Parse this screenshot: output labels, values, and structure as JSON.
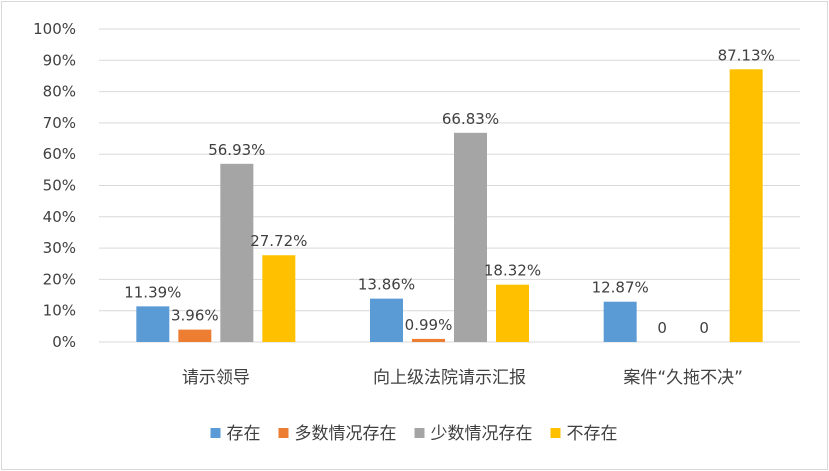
{
  "chart_data": {
    "type": "bar",
    "title": "",
    "xlabel": "",
    "ylabel": "",
    "ylim": [
      0,
      100
    ],
    "y_ticks": [
      "0%",
      "10%",
      "20%",
      "30%",
      "40%",
      "50%",
      "60%",
      "70%",
      "80%",
      "90%",
      "100%"
    ],
    "grid": true,
    "legend_position": "bottom",
    "categories": [
      "请示领导",
      "向上级法院请示汇报",
      "案件“久拖不决”"
    ],
    "series": [
      {
        "name": "存在",
        "color": "#5B9BD5",
        "values": [
          11.39,
          13.86,
          12.87
        ],
        "labels": [
          "11.39%",
          "13.86%",
          "12.87%"
        ]
      },
      {
        "name": "多数情况存在",
        "color": "#ED7D31",
        "values": [
          3.96,
          0.99,
          0
        ],
        "labels": [
          "3.96%",
          "0.99%",
          "0"
        ]
      },
      {
        "name": "少数情况存在",
        "color": "#A5A5A5",
        "values": [
          56.93,
          66.83,
          0
        ],
        "labels": [
          "56.93%",
          "66.83%",
          "0"
        ]
      },
      {
        "name": "不存在",
        "color": "#FFC000",
        "values": [
          27.72,
          18.32,
          87.13
        ],
        "labels": [
          "27.72%",
          "18.32%",
          "87.13%"
        ]
      }
    ]
  }
}
